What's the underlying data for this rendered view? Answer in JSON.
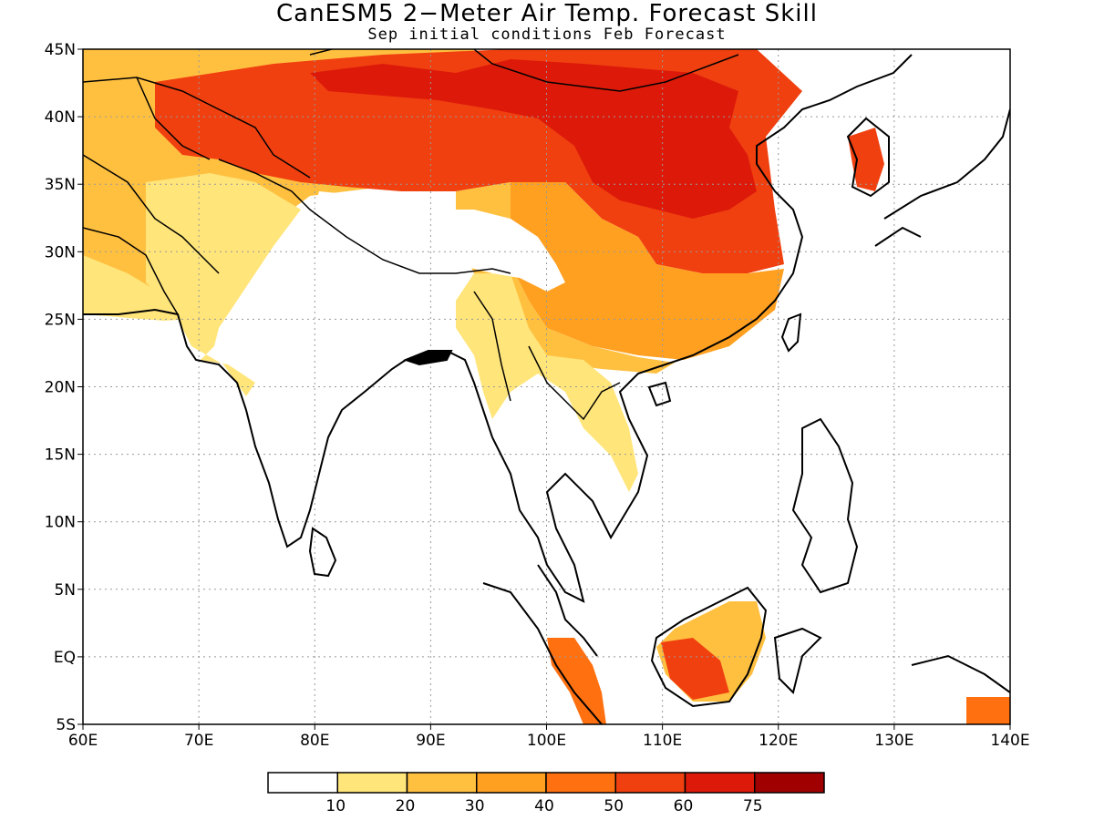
{
  "title": "CanESM5 2−Meter Air Temp. Forecast Skill",
  "subtitle": "Sep initial conditions  Feb Forecast",
  "map": {
    "lon_range": [
      60,
      140
    ],
    "lat_range": [
      -5,
      45
    ],
    "lon_ticks": [
      "60E",
      "70E",
      "80E",
      "90E",
      "100E",
      "110E",
      "120E",
      "130E",
      "140E"
    ],
    "lat_ticks": [
      "5S",
      "EQ",
      "5N",
      "10N",
      "15N",
      "20N",
      "25N",
      "30N",
      "35N",
      "40N",
      "45N"
    ],
    "grid": "dotted"
  },
  "legend": {
    "labels": [
      "10",
      "20",
      "30",
      "40",
      "50",
      "60",
      "75"
    ],
    "colors": [
      "#ffffff",
      "#ffe57a",
      "#ffc040",
      "#ffa020",
      "#ff7010",
      "#f04010",
      "#dd1a0a",
      "#a00000"
    ]
  }
}
